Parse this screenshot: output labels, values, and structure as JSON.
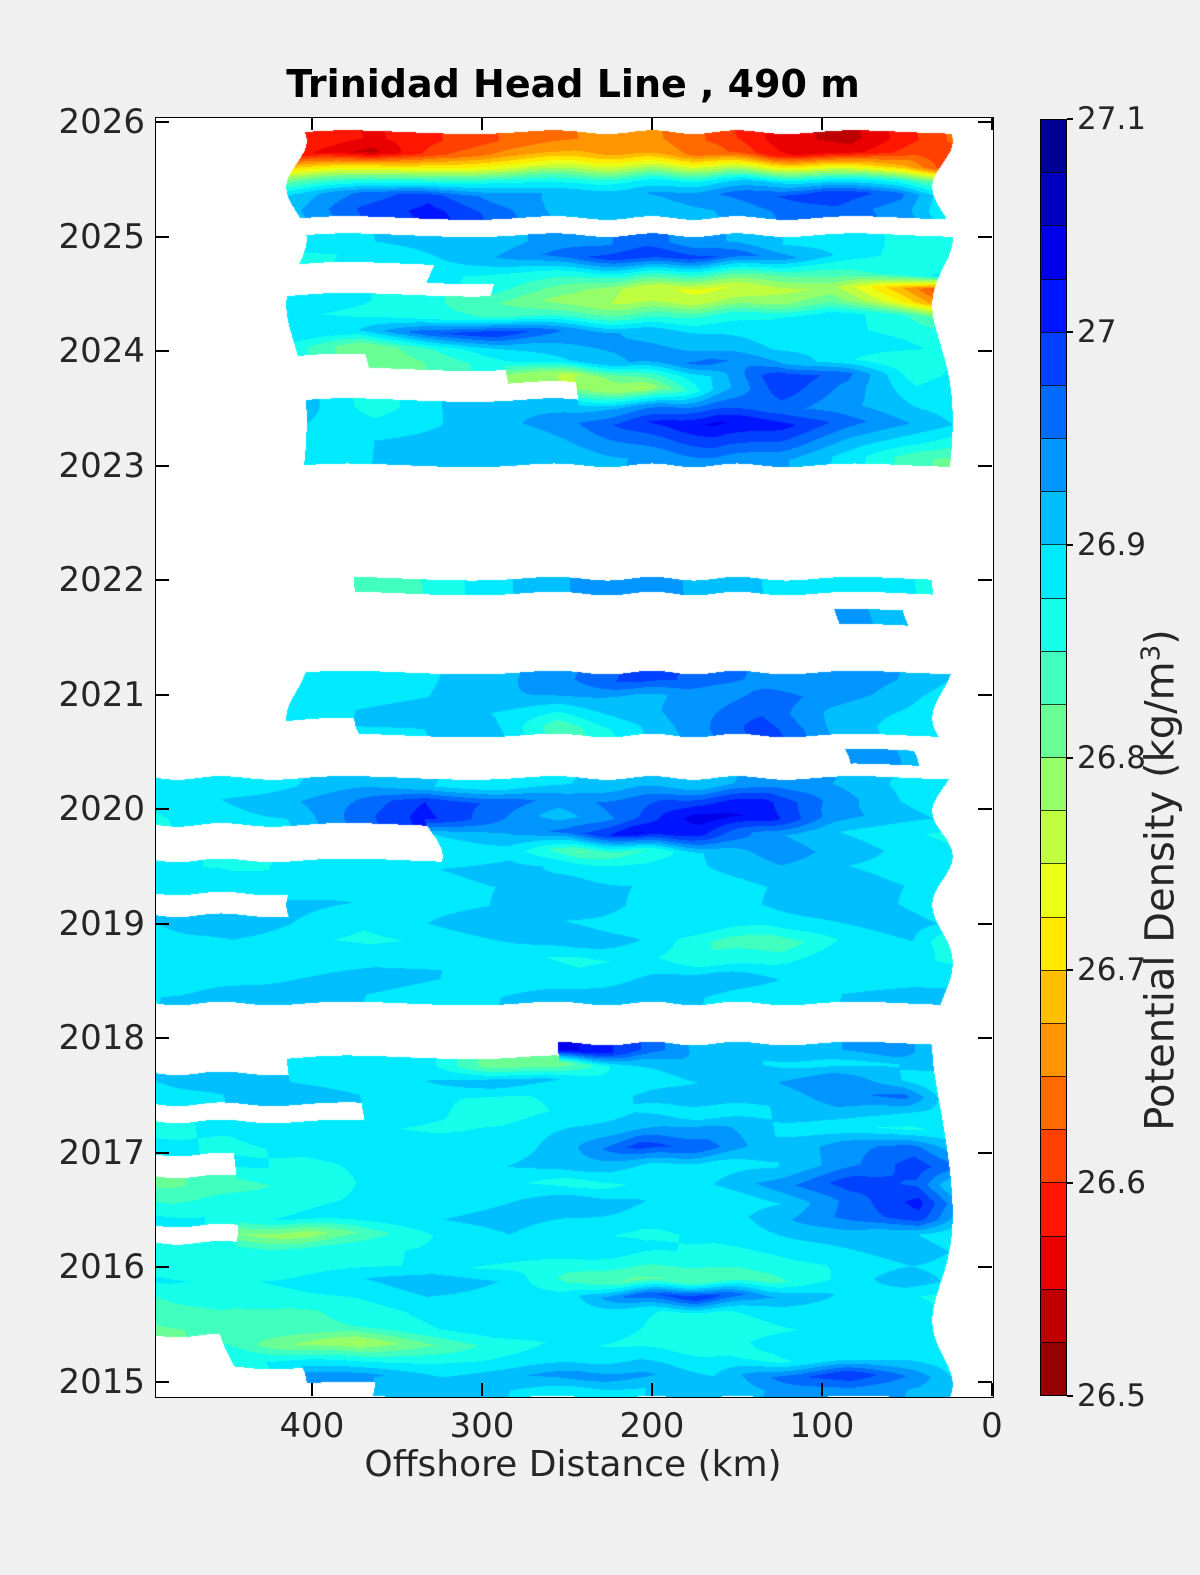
{
  "figure": {
    "background_color": "#f0f0f0",
    "text_color": "#262626",
    "plot_background": "#ffffff"
  },
  "chart_data": {
    "type": "heatmap",
    "subtype": "filled-contour-time-section",
    "title": "Trinidad Head Line , 490 m",
    "xlabel": "Offshore Distance (km)",
    "ylabel": "",
    "grid_on": false,
    "x_axis": {
      "min": 0,
      "max": 492.35,
      "reversed": true,
      "ticks": [
        400,
        300,
        200,
        100,
        0
      ]
    },
    "y_axis": {
      "min": 2014.874,
      "max": 2026.044,
      "ticks": [
        2026,
        2025,
        2024,
        2023,
        2022,
        2021,
        2020,
        2019,
        2018,
        2017,
        2016,
        2015
      ]
    },
    "colorbar": {
      "label_main": "Potential Density (kg/m",
      "label_sup": "3",
      "label_close": ")",
      "min": 26.5,
      "max": 27.1,
      "segments": 24,
      "colormap": "jet-reversed",
      "tick_labels": [
        "27.1",
        "27",
        "26.9",
        "26.8",
        "26.7",
        "26.6",
        "26.5"
      ],
      "tick_values": [
        27.1,
        27.0,
        26.9,
        26.8,
        26.7,
        26.6,
        26.5
      ]
    },
    "no_data_color": "#ffffff",
    "grid": {
      "x_km": [
        490,
        450,
        410,
        370,
        330,
        290,
        250,
        210,
        170,
        130,
        90,
        50,
        30
      ],
      "rows": [
        [
          2025.86,
          null,
          null,
          26.6,
          26.57,
          26.6,
          26.63,
          26.65,
          26.66,
          26.62,
          26.56,
          26.54,
          26.6,
          26.63
        ],
        [
          2025.74,
          null,
          null,
          26.58,
          26.54,
          26.62,
          26.66,
          26.68,
          26.67,
          26.64,
          26.58,
          26.56,
          26.62,
          26.6
        ],
        [
          2025.62,
          null,
          null,
          26.7,
          26.7,
          26.72,
          26.74,
          26.76,
          26.76,
          26.76,
          26.74,
          26.72,
          26.68,
          26.62
        ],
        [
          2025.5,
          null,
          null,
          26.82,
          26.84,
          26.86,
          26.87,
          26.86,
          26.87,
          26.88,
          26.9,
          26.88,
          26.86,
          26.82
        ],
        [
          2025.38,
          null,
          null,
          26.9,
          26.95,
          26.99,
          26.94,
          26.92,
          26.92,
          26.94,
          26.97,
          27.0,
          26.96,
          26.9
        ],
        [
          2025.24,
          null,
          null,
          26.92,
          26.98,
          27.01,
          26.96,
          26.91,
          26.9,
          26.92,
          26.95,
          26.97,
          26.93,
          26.88
        ],
        [
          2024.96,
          null,
          null,
          26.89,
          26.9,
          26.91,
          26.92,
          26.94,
          26.96,
          26.93,
          26.9,
          26.88,
          26.87,
          26.87
        ],
        [
          2024.84,
          null,
          null,
          26.87,
          26.88,
          26.9,
          26.93,
          26.97,
          27.0,
          26.98,
          26.94,
          26.89,
          26.86,
          26.85
        ],
        [
          2024.68,
          null,
          null,
          null,
          null,
          26.88,
          26.87,
          26.86,
          26.86,
          26.84,
          26.82,
          26.84,
          26.86,
          26.88
        ],
        [
          2024.56,
          null,
          null,
          null,
          null,
          null,
          26.86,
          26.82,
          26.77,
          26.74,
          26.76,
          26.78,
          26.68,
          26.62
        ],
        [
          2024.44,
          null,
          null,
          26.89,
          26.88,
          26.86,
          26.83,
          26.79,
          26.77,
          26.77,
          26.79,
          26.82,
          26.73,
          26.67
        ],
        [
          2024.32,
          null,
          null,
          26.88,
          26.87,
          26.86,
          26.85,
          26.84,
          26.83,
          26.85,
          26.87,
          26.89,
          26.86,
          26.82
        ],
        [
          2024.18,
          null,
          null,
          26.9,
          26.9,
          26.97,
          27.0,
          26.95,
          26.92,
          26.9,
          26.89,
          26.88,
          26.87,
          26.86
        ],
        [
          2024.04,
          null,
          null,
          26.86,
          26.8,
          26.85,
          26.9,
          26.92,
          26.93,
          26.92,
          26.9,
          26.89,
          26.88,
          26.87
        ],
        [
          2023.92,
          null,
          null,
          null,
          26.8,
          26.83,
          26.87,
          26.9,
          26.93,
          26.96,
          26.93,
          26.88,
          26.85,
          26.87
        ],
        [
          2023.8,
          null,
          null,
          null,
          null,
          null,
          26.79,
          26.77,
          26.84,
          26.9,
          27.0,
          26.96,
          26.86,
          26.88
        ],
        [
          2023.68,
          null,
          null,
          null,
          null,
          null,
          null,
          26.8,
          26.77,
          26.9,
          26.99,
          26.94,
          26.88,
          26.9
        ],
        [
          2023.52,
          null,
          null,
          26.91,
          26.86,
          26.9,
          26.92,
          26.91,
          26.94,
          26.97,
          26.96,
          26.93,
          26.9,
          26.89
        ],
        [
          2023.38,
          null,
          null,
          26.9,
          26.88,
          26.9,
          26.92,
          26.95,
          27.0,
          27.03,
          27.01,
          26.96,
          26.92,
          26.9
        ],
        [
          2023.22,
          null,
          null,
          26.89,
          26.9,
          26.91,
          26.9,
          26.93,
          26.96,
          26.99,
          26.97,
          26.92,
          26.88,
          26.86
        ],
        [
          2023.08,
          null,
          null,
          26.9,
          26.9,
          26.91,
          26.9,
          26.91,
          26.93,
          26.95,
          26.93,
          26.89,
          26.83,
          26.82
        ],
        [
          2021.96,
          null,
          null,
          null,
          26.83,
          26.85,
          26.89,
          26.92,
          26.95,
          26.92,
          26.9,
          26.89,
          26.88,
          26.87
        ],
        [
          2021.68,
          null,
          null,
          null,
          null,
          null,
          null,
          null,
          null,
          null,
          null,
          26.94,
          26.91,
          null
        ],
        [
          2021.14,
          null,
          null,
          26.9,
          26.9,
          26.9,
          26.92,
          26.95,
          26.99,
          26.96,
          26.94,
          26.94,
          26.92,
          26.9
        ],
        [
          2021.0,
          null,
          null,
          26.88,
          26.89,
          26.9,
          26.92,
          26.93,
          26.92,
          26.93,
          26.96,
          26.94,
          26.91,
          26.89
        ],
        [
          2020.86,
          null,
          null,
          26.89,
          26.9,
          26.91,
          26.9,
          26.88,
          26.91,
          26.94,
          26.97,
          26.92,
          26.9,
          26.89
        ],
        [
          2020.72,
          null,
          null,
          null,
          26.9,
          26.9,
          26.91,
          26.83,
          26.89,
          26.94,
          26.99,
          26.92,
          26.89,
          26.88
        ],
        [
          2020.46,
          null,
          null,
          null,
          null,
          null,
          null,
          null,
          null,
          null,
          null,
          26.94,
          26.92,
          null
        ],
        [
          2020.22,
          26.9,
          26.88,
          26.9,
          26.92,
          26.9,
          26.88,
          26.9,
          26.92,
          26.91,
          26.95,
          26.92,
          26.89,
          26.88
        ],
        [
          2020.08,
          26.88,
          26.9,
          26.92,
          26.95,
          27.0,
          26.97,
          26.94,
          26.96,
          26.99,
          27.01,
          26.94,
          26.9,
          26.89
        ],
        [
          2019.94,
          26.87,
          26.89,
          26.9,
          26.96,
          27.01,
          26.96,
          26.91,
          26.96,
          27.04,
          27.02,
          26.94,
          26.91,
          26.9
        ],
        [
          2019.8,
          null,
          null,
          null,
          null,
          26.9,
          26.92,
          26.96,
          27.03,
          27.0,
          26.93,
          26.9,
          26.88,
          26.87
        ],
        [
          2019.64,
          null,
          null,
          null,
          null,
          26.88,
          26.89,
          26.82,
          26.85,
          26.91,
          26.94,
          26.91,
          26.89,
          26.88
        ],
        [
          2019.5,
          26.88,
          26.87,
          26.88,
          26.89,
          26.9,
          26.91,
          26.89,
          26.88,
          26.9,
          26.92,
          26.9,
          26.89,
          26.9
        ],
        [
          2019.34,
          26.9,
          26.89,
          26.88,
          26.88,
          26.89,
          26.9,
          26.91,
          26.9,
          26.89,
          26.9,
          26.91,
          26.9,
          26.89
        ],
        [
          2019.18,
          null,
          null,
          26.91,
          26.9,
          26.89,
          26.9,
          26.92,
          26.9,
          26.88,
          26.9,
          26.92,
          26.9,
          26.88
        ],
        [
          2019.02,
          26.9,
          26.92,
          26.9,
          26.88,
          26.9,
          26.92,
          26.9,
          26.89,
          26.9,
          26.88,
          26.9,
          26.92,
          26.9
        ],
        [
          2018.86,
          26.89,
          26.9,
          26.88,
          26.87,
          26.88,
          26.9,
          26.92,
          26.9,
          26.85,
          26.83,
          26.88,
          26.9,
          26.85
        ],
        [
          2018.7,
          26.9,
          26.89,
          26.88,
          26.89,
          26.9,
          26.88,
          26.87,
          26.88,
          26.85,
          26.87,
          26.9,
          26.88,
          26.87
        ],
        [
          2018.54,
          26.88,
          26.89,
          26.9,
          26.91,
          26.9,
          26.89,
          26.88,
          26.9,
          26.92,
          26.9,
          26.88,
          26.89,
          26.9
        ],
        [
          2018.38,
          26.9,
          26.91,
          26.92,
          26.9,
          26.89,
          26.9,
          26.91,
          26.92,
          26.9,
          26.89,
          26.9,
          26.91,
          26.9
        ],
        [
          2017.9,
          null,
          null,
          null,
          null,
          null,
          null,
          27.04,
          26.99,
          26.92,
          26.9,
          26.92,
          26.95,
          26.9
        ],
        [
          2017.78,
          null,
          null,
          26.88,
          26.9,
          26.89,
          26.81,
          26.8,
          26.9,
          26.92,
          26.9,
          26.89,
          26.9,
          26.91
        ],
        [
          2017.64,
          26.9,
          26.92,
          26.9,
          26.88,
          26.9,
          26.92,
          26.9,
          26.88,
          26.9,
          26.92,
          26.95,
          26.9,
          26.88
        ],
        [
          2017.5,
          26.88,
          26.9,
          26.92,
          26.9,
          26.88,
          26.87,
          26.88,
          26.9,
          26.92,
          26.9,
          26.94,
          26.96,
          26.9
        ],
        [
          2017.36,
          null,
          null,
          null,
          26.9,
          26.88,
          26.86,
          26.88,
          26.9,
          26.88,
          26.9,
          26.92,
          26.9,
          26.89
        ],
        [
          2017.22,
          26.87,
          26.88,
          26.9,
          26.88,
          26.87,
          26.88,
          26.9,
          26.92,
          26.94,
          26.9,
          26.88,
          26.87,
          26.88
        ],
        [
          2017.06,
          26.88,
          26.87,
          26.88,
          26.89,
          26.9,
          26.88,
          26.92,
          26.99,
          26.96,
          26.9,
          26.94,
          26.96,
          26.92
        ],
        [
          2016.9,
          null,
          26.88,
          26.87,
          26.88,
          26.89,
          26.9,
          26.92,
          26.9,
          26.88,
          26.9,
          26.94,
          26.99,
          26.96
        ],
        [
          2016.74,
          26.82,
          26.84,
          26.86,
          26.88,
          26.9,
          26.88,
          26.86,
          26.88,
          26.9,
          26.94,
          26.99,
          26.97,
          26.9
        ],
        [
          2016.58,
          26.85,
          26.86,
          26.87,
          26.88,
          26.89,
          26.9,
          26.92,
          26.9,
          26.88,
          26.9,
          26.96,
          27.01,
          26.94
        ],
        [
          2016.44,
          26.88,
          26.87,
          26.88,
          26.89,
          26.9,
          26.91,
          26.9,
          26.89,
          26.88,
          26.92,
          26.96,
          26.99,
          26.92
        ],
        [
          2016.3,
          null,
          26.8,
          26.78,
          26.84,
          26.88,
          26.9,
          26.88,
          26.87,
          26.88,
          26.9,
          26.92,
          26.9,
          26.88
        ],
        [
          2016.16,
          26.87,
          26.86,
          26.86,
          26.87,
          26.88,
          26.89,
          26.9,
          26.88,
          26.87,
          26.88,
          26.9,
          26.92,
          26.9
        ],
        [
          2016.02,
          26.86,
          26.85,
          26.86,
          26.87,
          26.88,
          26.87,
          26.86,
          26.85,
          26.85,
          26.86,
          26.88,
          26.9,
          26.89
        ],
        [
          2015.9,
          26.88,
          26.87,
          26.88,
          26.9,
          26.92,
          26.9,
          26.84,
          26.82,
          26.83,
          26.84,
          26.88,
          26.92,
          26.9
        ],
        [
          2015.76,
          26.85,
          26.86,
          26.87,
          26.88,
          26.9,
          26.89,
          26.88,
          26.96,
          27.0,
          26.93,
          26.9,
          26.88,
          26.87
        ],
        [
          2015.62,
          26.84,
          26.85,
          26.84,
          26.86,
          26.88,
          26.9,
          26.89,
          26.88,
          26.87,
          26.88,
          26.89,
          26.9,
          26.88
        ],
        [
          2015.48,
          26.82,
          26.83,
          26.84,
          26.85,
          26.87,
          26.89,
          26.9,
          26.88,
          26.86,
          26.87,
          26.88,
          26.89,
          26.9
        ],
        [
          2015.34,
          null,
          26.85,
          26.8,
          26.77,
          26.82,
          26.86,
          26.88,
          26.87,
          26.86,
          26.88,
          26.9,
          26.89,
          26.88
        ],
        [
          2015.2,
          null,
          26.87,
          26.88,
          26.86,
          26.87,
          26.88,
          26.89,
          26.9,
          26.88,
          26.87,
          26.89,
          26.9,
          26.89
        ],
        [
          2015.06,
          null,
          null,
          26.94,
          26.93,
          26.9,
          26.92,
          26.94,
          26.93,
          26.9,
          26.96,
          27.0,
          26.94,
          26.9
        ],
        [
          2014.94,
          null,
          null,
          null,
          26.9,
          26.92,
          26.9,
          26.89,
          26.9,
          26.91,
          26.93,
          26.95,
          26.92,
          26.9
        ]
      ]
    }
  }
}
